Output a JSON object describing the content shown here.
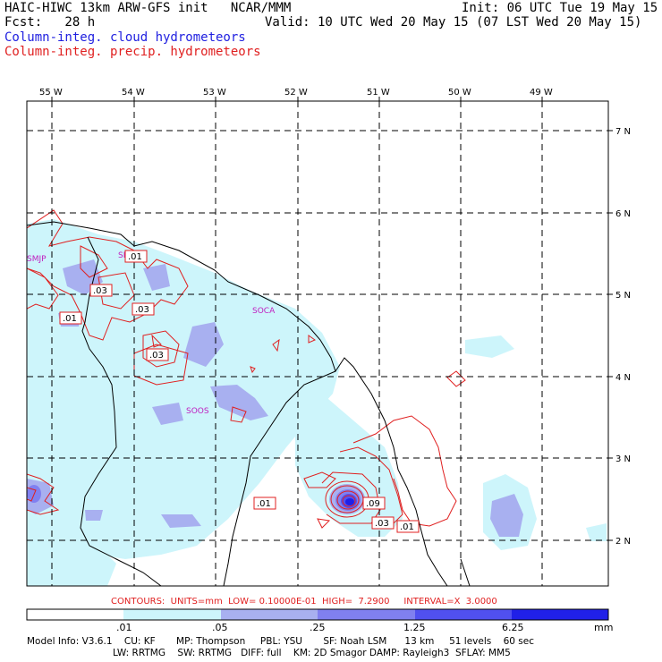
{
  "header": {
    "line1_left": "HAIC-HIWC 13km ARW-GFS init   NCAR/MMM",
    "line1_right": "Init: 06 UTC Tue 19 May 15",
    "line2_left": "Fcst:   28 h",
    "line2_right": "Valid: 10 UTC Wed 20 May 15 (07 LST Wed 20 May 15)",
    "field1": "Column-integ. cloud hydrometeors",
    "field2": "Column-integ. precip. hydrometeors"
  },
  "colors": {
    "cloud_field": "#2020e0",
    "precip_field": "#e02020",
    "shade_level1": "#cdf5fb",
    "shade_level2": "#a8b0f0",
    "shade_level3": "#8080f0",
    "shade_level4": "#5050f0",
    "shade_level5": "#2020e8",
    "station_label": "#c020c0"
  },
  "map": {
    "lon_labels": [
      "55 W",
      "54 W",
      "53 W",
      "52 W",
      "51 W",
      "50 W",
      "49 W"
    ],
    "lat_labels": [
      "7 N",
      "6 N",
      "5 N",
      "4 N",
      "3 N",
      "2 N"
    ],
    "stations": [
      "SMJP",
      "SMJP",
      "SOCA",
      "SOOS"
    ],
    "contour_labels": [
      ".03",
      ".01",
      ".03",
      ".03",
      ".01",
      ".09",
      ".03",
      ".01",
      ".01"
    ]
  },
  "contour_info": "CONTOURS:  UNITS=mm  LOW= 0.10000E-01  HIGH=  7.2900     INTERVAL=X  3.0000",
  "legend": {
    "ticks": [
      ".01",
      ".05",
      ".25",
      "1.25",
      "6.25"
    ],
    "units": "mm"
  },
  "footer": {
    "line1": "Model Info: V3.6.1    CU: KF       MP: Thompson     PBL: YSU       SF: Noah LSM      13 km     51 levels    60 sec",
    "line2": "LW: RRTMG    SW: RRTMG   DIFF: full    KM: 2D Smagor DAMP: Rayleigh3  SFLAY: MM5"
  }
}
